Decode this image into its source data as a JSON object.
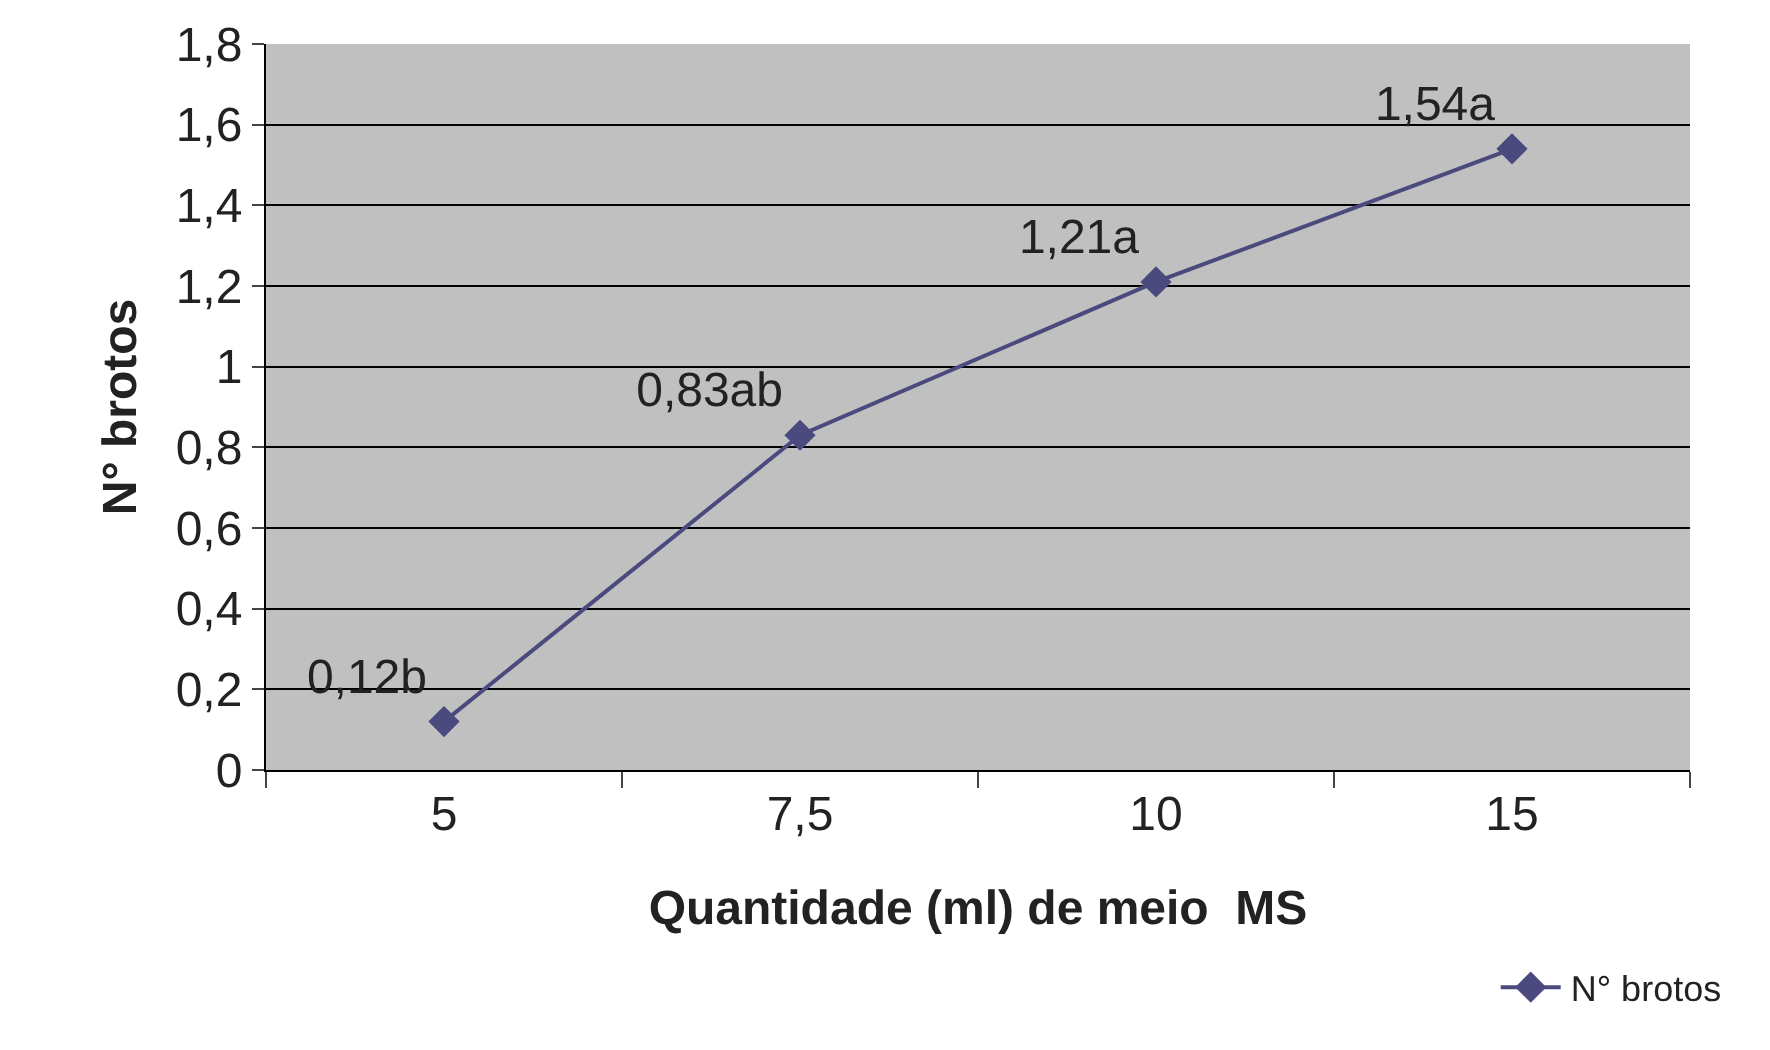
{
  "chart_data": {
    "type": "line",
    "xlabel": "Quantidade (ml) de meio  MS",
    "ylabel": "N° brotos",
    "categories": [
      "5",
      "7,5",
      "10",
      "15"
    ],
    "series": [
      {
        "name": "N° brotos",
        "color": "#4a4a7e",
        "values": [
          0.12,
          0.83,
          1.21,
          1.54
        ],
        "value_labels": [
          "0,12b",
          "0,83ab",
          "1,21a",
          "1,54a"
        ]
      }
    ],
    "ylim": [
      0,
      1.8
    ],
    "yticks": [
      0,
      {
        "value": 0.2,
        "label": "0,2"
      },
      {
        "value": 0.4,
        "label": "0,4"
      },
      {
        "value": 0.6,
        "label": "0,6"
      },
      {
        "value": 0.8,
        "label": "0,8"
      },
      1,
      {
        "value": 1.2,
        "label": "1,2"
      },
      {
        "value": 1.4,
        "label": "1,4"
      },
      {
        "value": 1.6,
        "label": "1,6"
      },
      {
        "value": 1.8,
        "label": "1,8"
      }
    ],
    "grid": "y",
    "legend": "bottom right",
    "marker": "diamond",
    "line_style": "solid"
  }
}
